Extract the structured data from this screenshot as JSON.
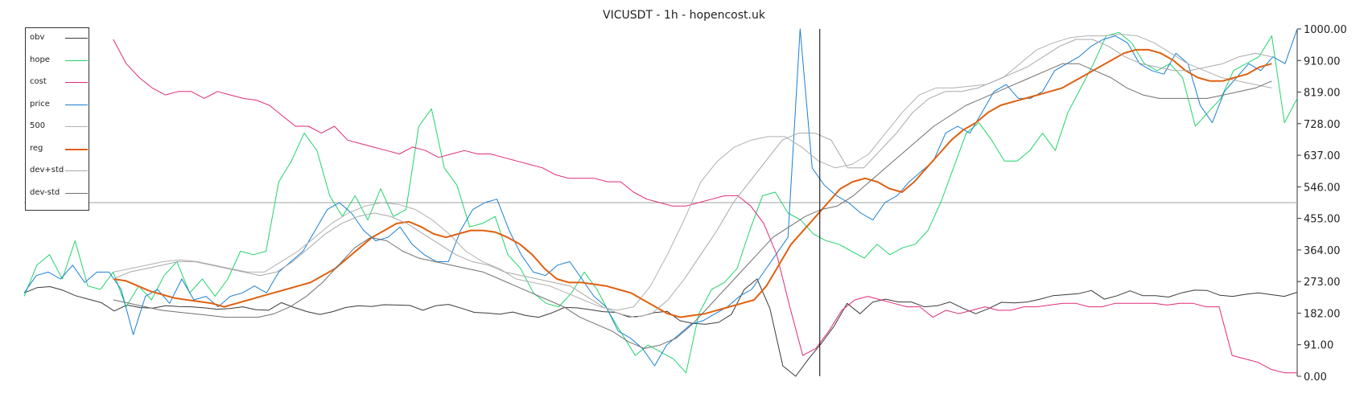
{
  "chart_data": {
    "type": "line",
    "title": "VICUSDT - 1h - hopencost.uk",
    "y_axis": {
      "position": "right",
      "range": [
        0,
        1000
      ],
      "ticks": [
        "0.00",
        "91.00",
        "182.00",
        "273.00",
        "364.00",
        "455.00",
        "546.00",
        "637.00",
        "728.00",
        "819.00",
        "910.00",
        "1000.00"
      ]
    },
    "grid": false,
    "legend_position": "top-left",
    "horizontal_line": 500,
    "series": [
      {
        "name": "obv",
        "color": "#3a3a3a",
        "width": 1,
        "values": [
          240,
          255,
          258,
          248,
          232,
          222,
          212,
          188,
          205,
          198,
          196,
          203,
          201,
          200,
          197,
          193,
          195,
          200,
          192,
          190,
          212,
          198,
          186,
          178,
          186,
          198,
          203,
          201,
          206,
          205,
          204,
          190,
          203,
          207,
          196,
          184,
          182,
          179,
          185,
          175,
          170,
          182,
          198,
          197,
          192,
          186,
          184,
          171,
          173,
          183,
          187,
          160,
          152,
          150,
          155,
          178,
          250,
          280,
          195,
          30,
          0,
          50,
          95,
          145,
          210,
          180,
          214,
          222,
          214,
          214,
          200,
          203,
          214,
          196,
          180,
          195,
          213,
          211,
          214,
          222,
          232,
          235,
          238,
          247,
          222,
          232,
          246,
          232,
          232,
          228,
          240,
          248,
          247,
          233,
          230,
          236,
          240,
          235,
          230,
          242
        ]
      },
      {
        "name": "hope",
        "color": "#22d46a",
        "width": 1,
        "values": [
          230,
          320,
          350,
          280,
          390,
          260,
          250,
          300,
          200,
          260,
          220,
          290,
          330,
          240,
          280,
          230,
          280,
          360,
          350,
          360,
          560,
          620,
          700,
          650,
          520,
          460,
          520,
          450,
          540,
          460,
          480,
          720,
          770,
          600,
          550,
          430,
          440,
          460,
          350,
          310,
          240,
          210,
          200,
          240,
          300,
          250,
          180,
          120,
          60,
          90,
          70,
          50,
          10,
          180,
          250,
          270,
          310,
          420,
          520,
          530,
          470,
          450,
          410,
          390,
          380,
          360,
          340,
          380,
          350,
          370,
          380,
          420,
          500,
          600,
          700,
          730,
          680,
          620,
          620,
          650,
          700,
          650,
          760,
          830,
          900,
          980,
          990,
          960,
          900,
          880,
          900,
          860,
          720,
          760,
          800,
          880,
          900,
          920,
          980,
          730,
          800
        ]
      },
      {
        "name": "cost",
        "color": "#e02a78",
        "width": 1,
        "values": [
          970,
          900,
          860,
          830,
          810,
          820,
          820,
          800,
          820,
          810,
          800,
          795,
          780,
          750,
          720,
          720,
          700,
          720,
          680,
          670,
          660,
          650,
          640,
          660,
          650,
          630,
          640,
          650,
          640,
          640,
          630,
          620,
          610,
          600,
          580,
          570,
          570,
          570,
          560,
          560,
          530,
          510,
          500,
          490,
          490,
          500,
          510,
          520,
          520,
          490,
          440,
          350,
          200,
          60,
          80,
          130,
          190,
          220,
          230,
          220,
          210,
          200,
          200,
          170,
          190,
          180,
          190,
          200,
          190,
          190,
          200,
          200,
          205,
          210,
          210,
          200,
          200,
          210,
          210,
          210,
          210,
          205,
          210,
          210,
          200,
          200,
          60,
          50,
          40,
          20,
          10,
          10
        ]
      },
      {
        "name": "price",
        "color": "#1a7fd4",
        "width": 1,
        "values": [
          240,
          290,
          300,
          280,
          320,
          270,
          300,
          300,
          250,
          120,
          230,
          250,
          210,
          280,
          220,
          230,
          200,
          230,
          240,
          260,
          240,
          300,
          330,
          360,
          420,
          480,
          500,
          470,
          420,
          390,
          400,
          430,
          380,
          350,
          330,
          330,
          420,
          480,
          500,
          510,
          420,
          350,
          300,
          290,
          320,
          330,
          280,
          230,
          200,
          130,
          110,
          80,
          30,
          90,
          120,
          150,
          160,
          180,
          200,
          230,
          250,
          300,
          350,
          400,
          1000,
          600,
          550,
          520,
          500,
          470,
          450,
          500,
          520,
          560,
          590,
          620,
          700,
          720,
          700,
          760,
          820,
          840,
          800,
          800,
          820,
          880,
          900,
          920,
          950,
          970,
          980,
          960,
          900,
          880,
          870,
          930,
          900,
          780,
          730,
          820,
          860,
          900,
          880,
          920,
          900,
          1000
        ]
      },
      {
        "name": "500",
        "color": "#b0b0b0",
        "width": 1,
        "values": [
          300,
          310,
          320,
          330,
          335,
          330,
          320,
          310,
          300,
          300,
          330,
          360,
          400,
          440,
          470,
          490,
          500,
          495,
          480,
          450,
          410,
          360,
          330,
          310,
          280,
          270,
          260,
          240,
          220,
          200,
          190,
          200,
          260,
          350,
          450,
          560,
          620,
          660,
          680,
          690,
          690,
          660,
          620,
          600,
          610,
          640,
          700,
          760,
          810,
          830,
          830,
          835,
          840,
          860,
          900,
          940,
          960,
          975,
          980,
          980,
          985,
          980,
          960,
          930,
          900,
          880,
          860,
          850,
          840,
          830
        ]
      },
      {
        "name": "reg",
        "color": "#e06010",
        "width": 2,
        "values": [
          280,
          275,
          260,
          245,
          235,
          225,
          220,
          215,
          210,
          200,
          210,
          220,
          230,
          240,
          250,
          260,
          270,
          290,
          310,
          340,
          370,
          400,
          420,
          440,
          445,
          430,
          410,
          400,
          410,
          420,
          420,
          415,
          400,
          380,
          350,
          310,
          280,
          270,
          270,
          265,
          260,
          250,
          240,
          220,
          200,
          180,
          170,
          175,
          180,
          190,
          200,
          210,
          220,
          260,
          320,
          380,
          420,
          460,
          500,
          540,
          560,
          570,
          560,
          540,
          530,
          560,
          600,
          640,
          680,
          710,
          730,
          760,
          780,
          790,
          800,
          810,
          820,
          830,
          850,
          870,
          890,
          910,
          930,
          940,
          940,
          930,
          910,
          880,
          860,
          850,
          850,
          860,
          870,
          890,
          900
        ]
      },
      {
        "name": "dev+std",
        "color": "#a8a8a8",
        "width": 1,
        "values": [
          280,
          300,
          310,
          320,
          330,
          330,
          320,
          310,
          300,
          290,
          300,
          330,
          370,
          410,
          440,
          460,
          470,
          460,
          440,
          410,
          380,
          350,
          330,
          320,
          300,
          290,
          280,
          270,
          260,
          230,
          200,
          180,
          170,
          180,
          220,
          280,
          350,
          420,
          500,
          560,
          620,
          680,
          700,
          700,
          680,
          600,
          600,
          650,
          700,
          760,
          800,
          820,
          820,
          830,
          850,
          870,
          890,
          920,
          950,
          970,
          970,
          950,
          920,
          900,
          890,
          880,
          880,
          890,
          900,
          920,
          930,
          920
        ]
      },
      {
        "name": "dev-std",
        "color": "#707070",
        "width": 1,
        "values": [
          220,
          210,
          200,
          190,
          185,
          180,
          175,
          170,
          170,
          170,
          180,
          200,
          230,
          270,
          320,
          370,
          400,
          390,
          360,
          340,
          330,
          320,
          310,
          300,
          280,
          260,
          240,
          220,
          200,
          170,
          150,
          130,
          100,
          80,
          90,
          110,
          150,
          200,
          250,
          300,
          350,
          400,
          430,
          460,
          480,
          490,
          520,
          560,
          600,
          640,
          680,
          720,
          750,
          780,
          800,
          820,
          840,
          860,
          880,
          900,
          900,
          880,
          860,
          830,
          810,
          800,
          800,
          800,
          800,
          810,
          820,
          830,
          850
        ]
      }
    ],
    "annotations": [
      {
        "type": "vertical_spike",
        "color": "#000000",
        "x_fraction": 0.625,
        "y_from": 0,
        "y_to": 1000
      }
    ]
  }
}
